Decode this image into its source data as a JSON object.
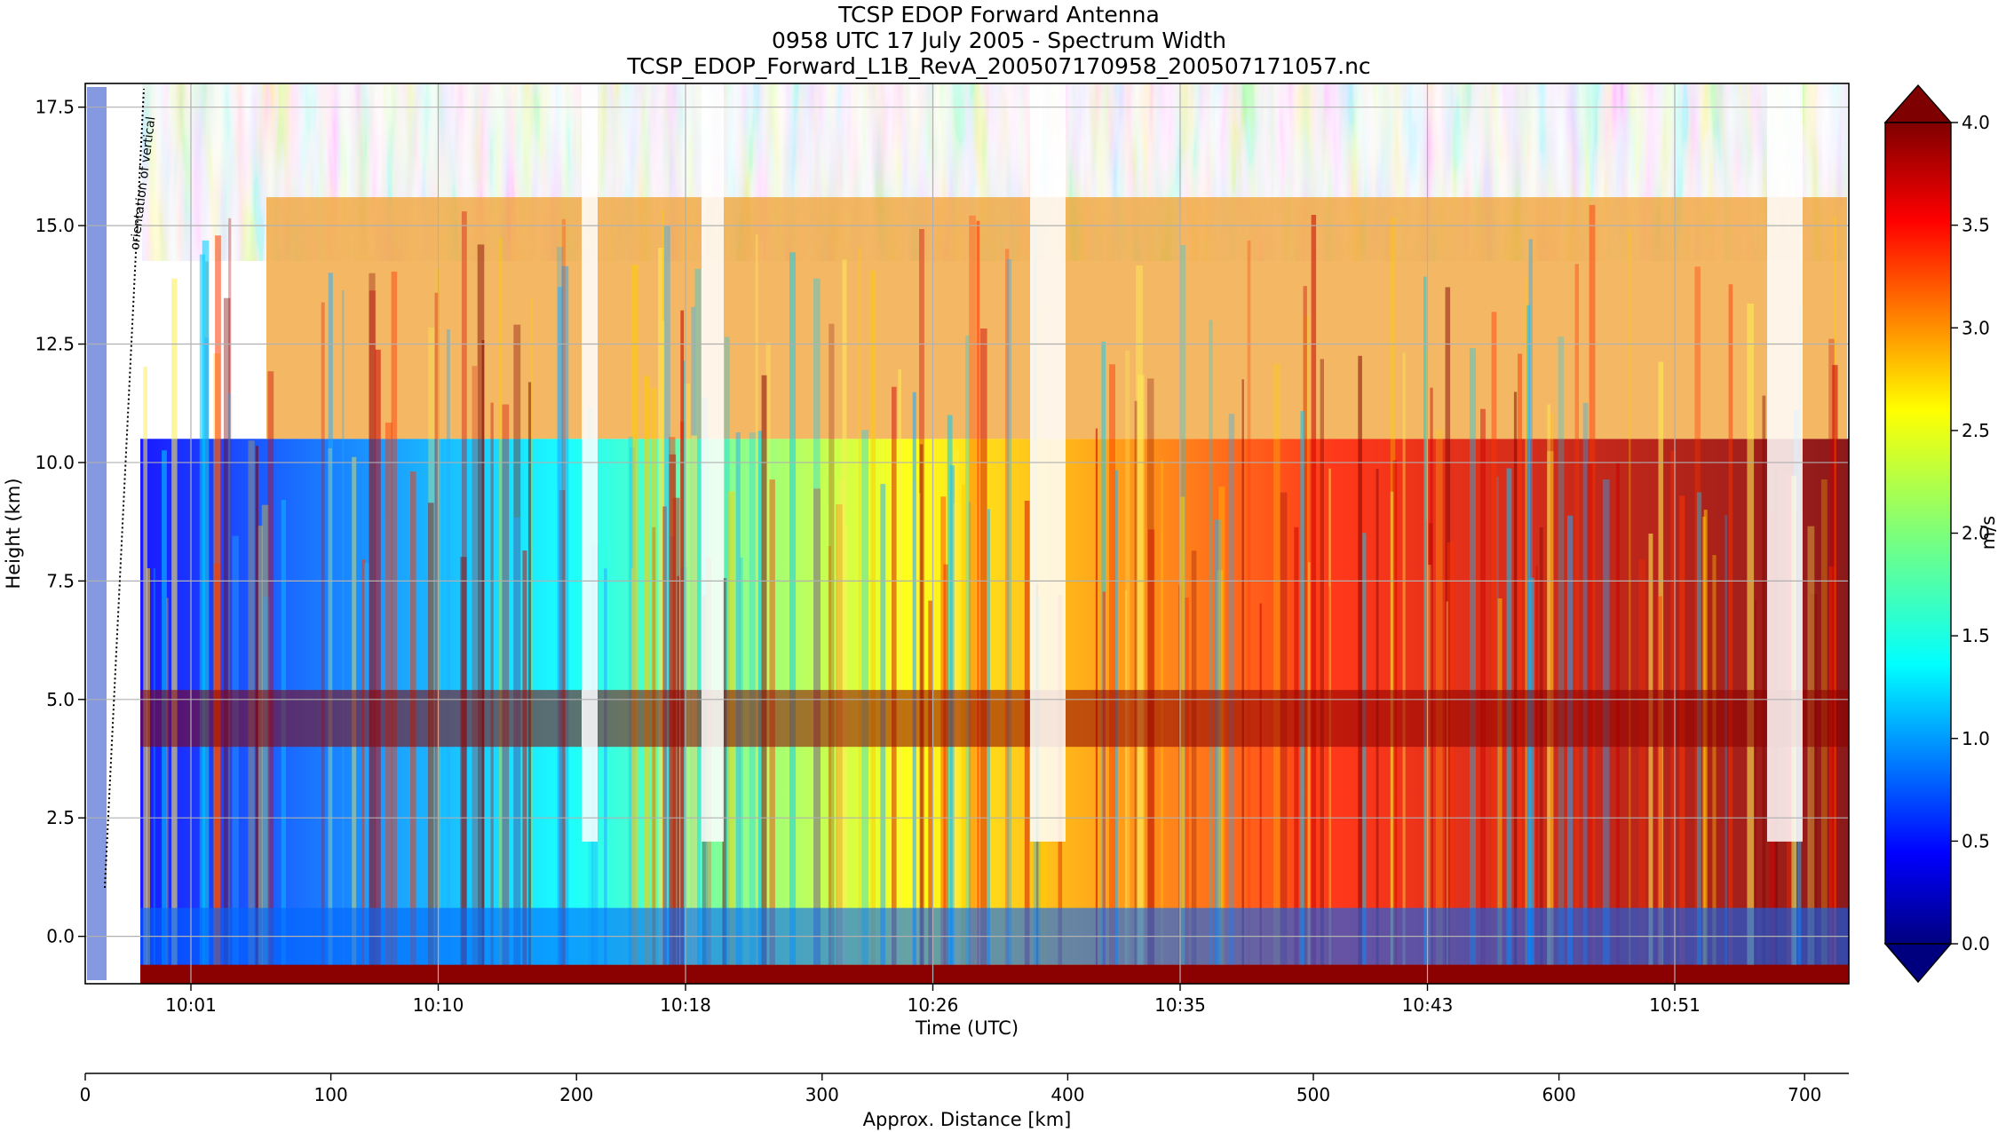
{
  "chart_data": {
    "type": "heatmap",
    "title": "TCSP EDOP Forward Antenna",
    "subtitle": "0958 UTC 17 July 2005 - Spectrum Width",
    "filename": "TCSP_EDOP_Forward_L1B_RevA_200507170958_200507171057.nc",
    "xlabel": "Time (UTC)",
    "ylabel": "Height (km)",
    "x_ticks": [
      "10:01",
      "10:10",
      "10:18",
      "10:26",
      "10:35",
      "10:43",
      "10:51"
    ],
    "y_ticks": [
      "0.0",
      "2.5",
      "5.0",
      "7.5",
      "10.0",
      "12.5",
      "15.0",
      "17.5"
    ],
    "ylim": [
      -1.0,
      18.0
    ],
    "grid": true,
    "annotation": "orientation of vertical",
    "secondary_axis": {
      "label": "Approx. Distance [km]",
      "ticks": [
        "0",
        "100",
        "200",
        "300",
        "400",
        "500",
        "600",
        "700"
      ],
      "xlim": [
        0,
        718
      ]
    },
    "colorbar": {
      "label": "m/s",
      "ticks": [
        "0.0",
        "0.5",
        "1.0",
        "1.5",
        "2.0",
        "2.5",
        "3.0",
        "3.5",
        "4.0"
      ],
      "range": [
        0.0,
        4.0
      ],
      "colormap": "jet",
      "extend": "both"
    },
    "colors": {
      "jet_dark_blue": "#00007f",
      "jet_blue": "#0000ff",
      "jet_cyan": "#00ffff",
      "jet_yellow": "#ffff00",
      "jet_red": "#ff0000",
      "jet_dark_red": "#7f0000"
    }
  }
}
